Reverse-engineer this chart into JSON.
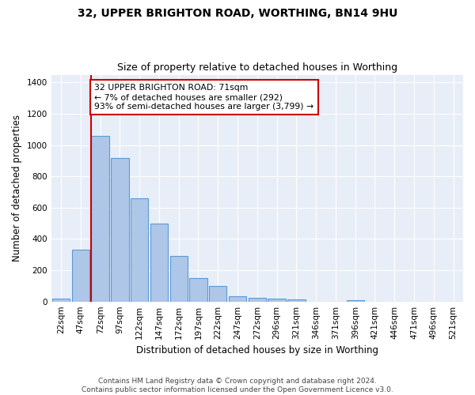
{
  "title1": "32, UPPER BRIGHTON ROAD, WORTHING, BN14 9HU",
  "title2": "Size of property relative to detached houses in Worthing",
  "xlabel": "Distribution of detached houses by size in Worthing",
  "ylabel": "Number of detached properties",
  "categories": [
    "22sqm",
    "47sqm",
    "72sqm",
    "97sqm",
    "122sqm",
    "147sqm",
    "172sqm",
    "197sqm",
    "222sqm",
    "247sqm",
    "272sqm",
    "296sqm",
    "321sqm",
    "346sqm",
    "371sqm",
    "396sqm",
    "421sqm",
    "446sqm",
    "471sqm",
    "496sqm",
    "521sqm"
  ],
  "values": [
    20,
    330,
    1060,
    920,
    660,
    500,
    290,
    150,
    100,
    35,
    25,
    20,
    15,
    0,
    0,
    10,
    0,
    0,
    0,
    0,
    0
  ],
  "bar_color": "#aec6e8",
  "bar_edge_color": "#5b9bd5",
  "vline_color": "#cc0000",
  "vline_pos": 1.55,
  "annotation_text": "32 UPPER BRIGHTON ROAD: 71sqm\n← 7% of detached houses are smaller (292)\n93% of semi-detached houses are larger (3,799) →",
  "annotation_box_color": "#ffffff",
  "annotation_box_edge": "#cc0000",
  "ylim": [
    0,
    1450
  ],
  "yticks": [
    0,
    200,
    400,
    600,
    800,
    1000,
    1200,
    1400
  ],
  "bg_color": "#e8eef7",
  "fig_bg_color": "#ffffff",
  "footer_text": "Contains HM Land Registry data © Crown copyright and database right 2024.\nContains public sector information licensed under the Open Government Licence v3.0."
}
